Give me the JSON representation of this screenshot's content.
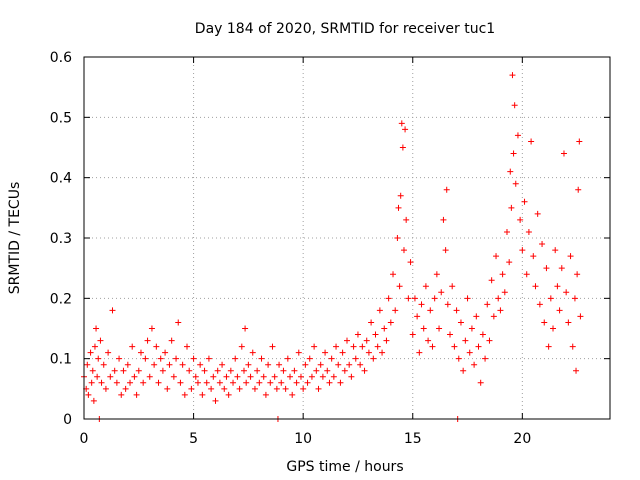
{
  "chart_data": {
    "type": "scatter",
    "title": "Day 184 of 2020, SRMTID for receiver tuc1",
    "xlabel": "GPS time / hours",
    "ylabel": "SRMTID / TECUs",
    "xlim": [
      0,
      24
    ],
    "ylim": [
      0,
      0.6
    ],
    "x_ticks": [
      "0",
      "5",
      "10",
      "15",
      "20"
    ],
    "x_tick_values": [
      0,
      5,
      10,
      15,
      20
    ],
    "y_ticks": [
      "0",
      "0.1",
      "0.2",
      "0.3",
      "0.4",
      "0.5",
      "0.6"
    ],
    "y_tick_values": [
      0,
      0.1,
      0.2,
      0.3,
      0.4,
      0.5,
      0.6
    ],
    "grid": true,
    "marker": "+",
    "series": [
      {
        "name": "tuc1",
        "color": "#ff0000",
        "points": [
          [
            0.0,
            0.07
          ],
          [
            0.1,
            0.05
          ],
          [
            0.15,
            0.09
          ],
          [
            0.2,
            0.04
          ],
          [
            0.3,
            0.11
          ],
          [
            0.35,
            0.06
          ],
          [
            0.4,
            0.08
          ],
          [
            0.45,
            0.03
          ],
          [
            0.5,
            0.12
          ],
          [
            0.55,
            0.15
          ],
          [
            0.6,
            0.07
          ],
          [
            0.65,
            0.1
          ],
          [
            0.7,
            0.0
          ],
          [
            0.75,
            0.13
          ],
          [
            0.8,
            0.06
          ],
          [
            0.9,
            0.09
          ],
          [
            1.0,
            0.05
          ],
          [
            1.1,
            0.11
          ],
          [
            1.2,
            0.07
          ],
          [
            1.3,
            0.18
          ],
          [
            1.4,
            0.08
          ],
          [
            1.5,
            0.06
          ],
          [
            1.6,
            0.1
          ],
          [
            1.7,
            0.04
          ],
          [
            1.8,
            0.08
          ],
          [
            1.9,
            0.05
          ],
          [
            2.0,
            0.09
          ],
          [
            2.1,
            0.06
          ],
          [
            2.2,
            0.12
          ],
          [
            2.3,
            0.07
          ],
          [
            2.4,
            0.04
          ],
          [
            2.5,
            0.08
          ],
          [
            2.6,
            0.11
          ],
          [
            2.7,
            0.06
          ],
          [
            2.8,
            0.1
          ],
          [
            2.9,
            0.13
          ],
          [
            3.0,
            0.07
          ],
          [
            3.1,
            0.15
          ],
          [
            3.2,
            0.09
          ],
          [
            3.3,
            0.12
          ],
          [
            3.4,
            0.06
          ],
          [
            3.5,
            0.1
          ],
          [
            3.6,
            0.08
          ],
          [
            3.7,
            0.11
          ],
          [
            3.8,
            0.05
          ],
          [
            3.9,
            0.09
          ],
          [
            4.0,
            0.13
          ],
          [
            4.1,
            0.07
          ],
          [
            4.2,
            0.1
          ],
          [
            4.3,
            0.16
          ],
          [
            4.4,
            0.06
          ],
          [
            4.5,
            0.09
          ],
          [
            4.6,
            0.04
          ],
          [
            4.7,
            0.12
          ],
          [
            4.8,
            0.08
          ],
          [
            4.9,
            0.05
          ],
          [
            5.0,
            0.1
          ],
          [
            5.1,
            0.07
          ],
          [
            5.2,
            0.06
          ],
          [
            5.3,
            0.09
          ],
          [
            5.4,
            0.04
          ],
          [
            5.5,
            0.08
          ],
          [
            5.6,
            0.06
          ],
          [
            5.7,
            0.1
          ],
          [
            5.8,
            0.05
          ],
          [
            5.9,
            0.07
          ],
          [
            6.0,
            0.03
          ],
          [
            6.1,
            0.08
          ],
          [
            6.2,
            0.06
          ],
          [
            6.3,
            0.09
          ],
          [
            6.4,
            0.05
          ],
          [
            6.5,
            0.07
          ],
          [
            6.6,
            0.04
          ],
          [
            6.7,
            0.08
          ],
          [
            6.8,
            0.06
          ],
          [
            6.9,
            0.1
          ],
          [
            7.0,
            0.07
          ],
          [
            7.1,
            0.05
          ],
          [
            7.2,
            0.12
          ],
          [
            7.3,
            0.08
          ],
          [
            7.35,
            0.15
          ],
          [
            7.4,
            0.06
          ],
          [
            7.5,
            0.09
          ],
          [
            7.6,
            0.07
          ],
          [
            7.7,
            0.11
          ],
          [
            7.8,
            0.05
          ],
          [
            7.9,
            0.08
          ],
          [
            8.0,
            0.06
          ],
          [
            8.1,
            0.1
          ],
          [
            8.2,
            0.07
          ],
          [
            8.3,
            0.04
          ],
          [
            8.4,
            0.09
          ],
          [
            8.5,
            0.06
          ],
          [
            8.6,
            0.12
          ],
          [
            8.7,
            0.07
          ],
          [
            8.8,
            0.05
          ],
          [
            8.85,
            0.0
          ],
          [
            8.9,
            0.09
          ],
          [
            9.0,
            0.06
          ],
          [
            9.1,
            0.08
          ],
          [
            9.2,
            0.05
          ],
          [
            9.3,
            0.1
          ],
          [
            9.4,
            0.07
          ],
          [
            9.5,
            0.04
          ],
          [
            9.6,
            0.08
          ],
          [
            9.7,
            0.06
          ],
          [
            9.8,
            0.11
          ],
          [
            9.9,
            0.07
          ],
          [
            10.0,
            0.05
          ],
          [
            10.1,
            0.09
          ],
          [
            10.2,
            0.06
          ],
          [
            10.3,
            0.1
          ],
          [
            10.4,
            0.07
          ],
          [
            10.5,
            0.12
          ],
          [
            10.6,
            0.08
          ],
          [
            10.7,
            0.05
          ],
          [
            10.8,
            0.09
          ],
          [
            10.9,
            0.07
          ],
          [
            11.0,
            0.11
          ],
          [
            11.1,
            0.08
          ],
          [
            11.2,
            0.06
          ],
          [
            11.3,
            0.1
          ],
          [
            11.4,
            0.07
          ],
          [
            11.5,
            0.12
          ],
          [
            11.6,
            0.09
          ],
          [
            11.7,
            0.06
          ],
          [
            11.8,
            0.11
          ],
          [
            11.9,
            0.08
          ],
          [
            12.0,
            0.13
          ],
          [
            12.1,
            0.09
          ],
          [
            12.2,
            0.07
          ],
          [
            12.3,
            0.12
          ],
          [
            12.4,
            0.1
          ],
          [
            12.5,
            0.14
          ],
          [
            12.6,
            0.09
          ],
          [
            12.7,
            0.12
          ],
          [
            12.8,
            0.08
          ],
          [
            12.9,
            0.13
          ],
          [
            13.0,
            0.11
          ],
          [
            13.1,
            0.16
          ],
          [
            13.2,
            0.1
          ],
          [
            13.3,
            0.14
          ],
          [
            13.4,
            0.12
          ],
          [
            13.5,
            0.18
          ],
          [
            13.6,
            0.11
          ],
          [
            13.7,
            0.15
          ],
          [
            13.8,
            0.13
          ],
          [
            13.9,
            0.2
          ],
          [
            14.0,
            0.16
          ],
          [
            14.1,
            0.24
          ],
          [
            14.2,
            0.18
          ],
          [
            14.3,
            0.3
          ],
          [
            14.35,
            0.35
          ],
          [
            14.4,
            0.22
          ],
          [
            14.45,
            0.37
          ],
          [
            14.5,
            0.49
          ],
          [
            14.55,
            0.45
          ],
          [
            14.6,
            0.28
          ],
          [
            14.65,
            0.48
          ],
          [
            14.7,
            0.33
          ],
          [
            14.8,
            0.2
          ],
          [
            14.9,
            0.26
          ],
          [
            15.0,
            0.14
          ],
          [
            15.1,
            0.2
          ],
          [
            15.2,
            0.17
          ],
          [
            15.3,
            0.11
          ],
          [
            15.4,
            0.19
          ],
          [
            15.5,
            0.15
          ],
          [
            15.6,
            0.22
          ],
          [
            15.7,
            0.13
          ],
          [
            15.8,
            0.18
          ],
          [
            15.9,
            0.12
          ],
          [
            16.0,
            0.2
          ],
          [
            16.1,
            0.24
          ],
          [
            16.2,
            0.15
          ],
          [
            16.3,
            0.21
          ],
          [
            16.4,
            0.33
          ],
          [
            16.5,
            0.28
          ],
          [
            16.55,
            0.38
          ],
          [
            16.6,
            0.19
          ],
          [
            16.7,
            0.14
          ],
          [
            16.8,
            0.22
          ],
          [
            16.9,
            0.12
          ],
          [
            17.0,
            0.18
          ],
          [
            17.05,
            0.0
          ],
          [
            17.1,
            0.1
          ],
          [
            17.2,
            0.16
          ],
          [
            17.3,
            0.08
          ],
          [
            17.4,
            0.13
          ],
          [
            17.5,
            0.2
          ],
          [
            17.6,
            0.11
          ],
          [
            17.7,
            0.15
          ],
          [
            17.8,
            0.09
          ],
          [
            17.9,
            0.17
          ],
          [
            18.0,
            0.12
          ],
          [
            18.1,
            0.06
          ],
          [
            18.2,
            0.14
          ],
          [
            18.3,
            0.1
          ],
          [
            18.4,
            0.19
          ],
          [
            18.5,
            0.13
          ],
          [
            18.6,
            0.23
          ],
          [
            18.7,
            0.17
          ],
          [
            18.8,
            0.27
          ],
          [
            18.9,
            0.2
          ],
          [
            19.0,
            0.18
          ],
          [
            19.1,
            0.24
          ],
          [
            19.2,
            0.21
          ],
          [
            19.3,
            0.31
          ],
          [
            19.4,
            0.26
          ],
          [
            19.45,
            0.41
          ],
          [
            19.5,
            0.35
          ],
          [
            19.55,
            0.57
          ],
          [
            19.6,
            0.44
          ],
          [
            19.65,
            0.52
          ],
          [
            19.7,
            0.39
          ],
          [
            19.8,
            0.47
          ],
          [
            19.9,
            0.33
          ],
          [
            20.0,
            0.28
          ],
          [
            20.1,
            0.36
          ],
          [
            20.2,
            0.24
          ],
          [
            20.3,
            0.31
          ],
          [
            20.4,
            0.46
          ],
          [
            20.5,
            0.27
          ],
          [
            20.6,
            0.22
          ],
          [
            20.7,
            0.34
          ],
          [
            20.8,
            0.19
          ],
          [
            20.9,
            0.29
          ],
          [
            21.0,
            0.16
          ],
          [
            21.1,
            0.25
          ],
          [
            21.2,
            0.12
          ],
          [
            21.3,
            0.2
          ],
          [
            21.4,
            0.15
          ],
          [
            21.5,
            0.28
          ],
          [
            21.6,
            0.22
          ],
          [
            21.7,
            0.18
          ],
          [
            21.8,
            0.25
          ],
          [
            21.9,
            0.44
          ],
          [
            22.0,
            0.21
          ],
          [
            22.1,
            0.16
          ],
          [
            22.2,
            0.27
          ],
          [
            22.3,
            0.12
          ],
          [
            22.4,
            0.2
          ],
          [
            22.45,
            0.08
          ],
          [
            22.5,
            0.24
          ],
          [
            22.55,
            0.38
          ],
          [
            22.6,
            0.46
          ],
          [
            22.65,
            0.17
          ]
        ]
      }
    ]
  }
}
